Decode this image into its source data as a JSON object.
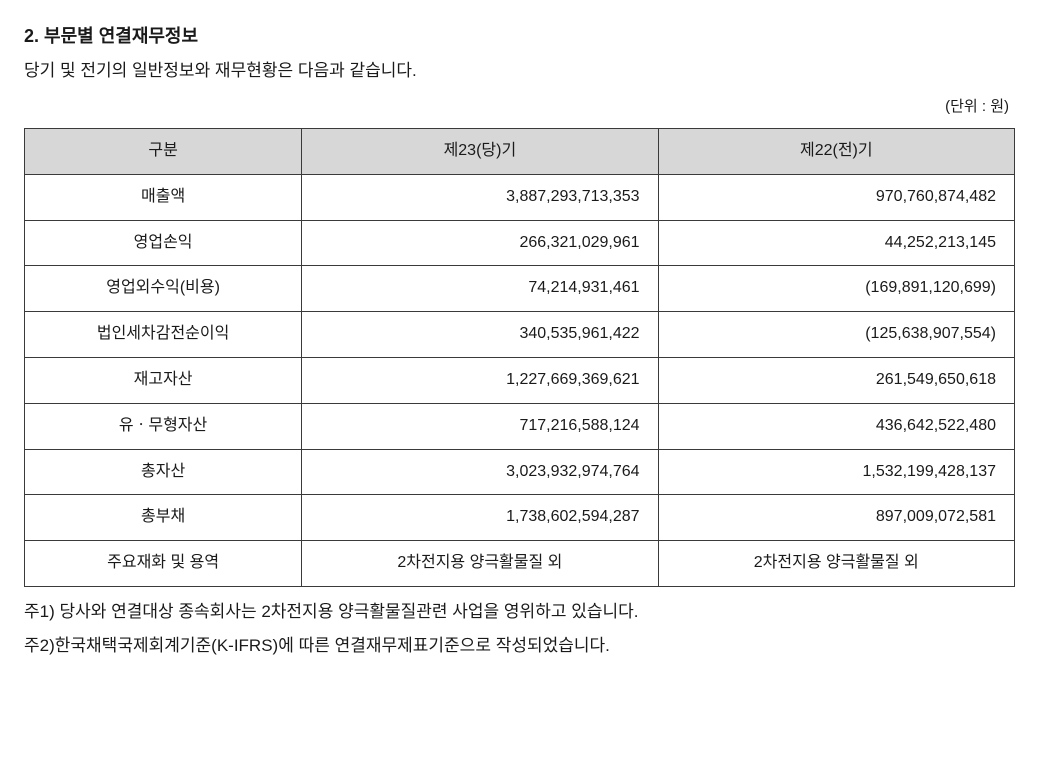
{
  "heading": "2. 부문별 연결재무정보",
  "intro": "당기 및 전기의 일반정보와 재무현황은 다음과 같습니다.",
  "unit": "(단위 : 원)",
  "table": {
    "headers": [
      "구분",
      "제23(당)기",
      "제22(전)기"
    ],
    "rows": [
      {
        "label": "매출액",
        "v1": "3,887,293,713,353",
        "v2": "970,760,874,482",
        "type": "num"
      },
      {
        "label": "영업손익",
        "v1": "266,321,029,961",
        "v2": "44,252,213,145",
        "type": "num"
      },
      {
        "label": "영업외수익(비용)",
        "v1": "74,214,931,461",
        "v2": "(169,891,120,699)",
        "type": "num"
      },
      {
        "label": "법인세차감전순이익",
        "v1": "340,535,961,422",
        "v2": "(125,638,907,554)",
        "type": "num"
      },
      {
        "label": "재고자산",
        "v1": "1,227,669,369,621",
        "v2": "261,549,650,618",
        "type": "num"
      },
      {
        "label": "유ㆍ무형자산",
        "v1": "717,216,588,124",
        "v2": "436,642,522,480",
        "type": "num"
      },
      {
        "label": "총자산",
        "v1": "3,023,932,974,764",
        "v2": "1,532,199,428,137",
        "type": "num"
      },
      {
        "label": "총부채",
        "v1": "1,738,602,594,287",
        "v2": "897,009,072,581",
        "type": "num"
      },
      {
        "label": "주요재화 및 용역",
        "v1": "2차전지용 양극활물질 외",
        "v2": "2차전지용 양극활물질 외",
        "type": "text"
      }
    ]
  },
  "note1": "주1) 당사와 연결대상 종속회사는 2차전지용 양극활물질관련 사업을 영위하고 있습니다.",
  "note2": "주2)한국채택국제회계기준(K-IFRS)에 따른 연결재무제표기준으로 작성되었습니다."
}
